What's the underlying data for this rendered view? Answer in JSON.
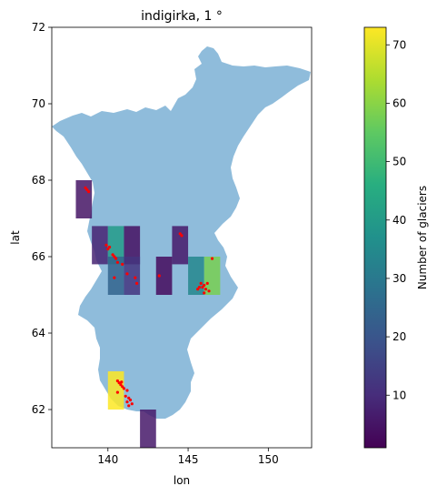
{
  "chart_data": {
    "type": "heatmap",
    "title": "indigirka, 1 °",
    "xlabel": "lon",
    "ylabel": "lat",
    "xlim": [
      136.5,
      152.7
    ],
    "ylim": [
      61.0,
      72.0
    ],
    "xticks": [
      140,
      145,
      150
    ],
    "yticks": [
      62,
      64,
      66,
      68,
      70,
      72
    ],
    "grid": false,
    "cell_size_deg": 1,
    "cells": [
      {
        "lon": 138,
        "lat": 67,
        "count": 5
      },
      {
        "lon": 139,
        "lat": 65.8,
        "count": 8
      },
      {
        "lon": 140,
        "lat": 65.8,
        "count": 40
      },
      {
        "lon": 141,
        "lat": 65.8,
        "count": 4
      },
      {
        "lon": 144,
        "lat": 65.8,
        "count": 6
      },
      {
        "lon": 140,
        "lat": 65,
        "count": 24
      },
      {
        "lon": 141,
        "lat": 65,
        "count": 12
      },
      {
        "lon": 143,
        "lat": 65,
        "count": 3
      },
      {
        "lon": 145,
        "lat": 65,
        "count": 34
      },
      {
        "lon": 146,
        "lat": 65,
        "count": 58
      },
      {
        "lon": 140,
        "lat": 62,
        "count": 73
      },
      {
        "lon": 142,
        "lat": 61,
        "count": 6
      }
    ],
    "glacier_points": [
      [
        138.7,
        67.75
      ],
      [
        138.8,
        67.7
      ],
      [
        138.6,
        67.8
      ],
      [
        139.9,
        66.3
      ],
      [
        140.1,
        66.25
      ],
      [
        140.0,
        66.2
      ],
      [
        140.3,
        66.05
      ],
      [
        140.5,
        65.95
      ],
      [
        140.4,
        66.0
      ],
      [
        140.6,
        65.85
      ],
      [
        140.9,
        65.8
      ],
      [
        141.2,
        65.55
      ],
      [
        141.7,
        65.45
      ],
      [
        141.8,
        65.3
      ],
      [
        140.4,
        65.45
      ],
      [
        143.2,
        65.5
      ],
      [
        144.5,
        66.6
      ],
      [
        144.6,
        66.55
      ],
      [
        145.8,
        65.3
      ],
      [
        145.9,
        65.2
      ],
      [
        146.0,
        65.25
      ],
      [
        146.1,
        65.15
      ],
      [
        146.2,
        65.3
      ],
      [
        146.3,
        65.1
      ],
      [
        145.7,
        65.2
      ],
      [
        146.0,
        65.05
      ],
      [
        145.6,
        65.15
      ],
      [
        146.5,
        65.95
      ],
      [
        140.6,
        62.75
      ],
      [
        140.7,
        62.7
      ],
      [
        140.8,
        62.65
      ],
      [
        140.9,
        62.6
      ],
      [
        141.0,
        62.55
      ],
      [
        141.2,
        62.5
      ],
      [
        141.1,
        62.35
      ],
      [
        141.3,
        62.3
      ],
      [
        141.4,
        62.25
      ],
      [
        141.2,
        62.2
      ],
      [
        141.3,
        62.1
      ],
      [
        141.5,
        62.15
      ],
      [
        140.6,
        62.45
      ],
      [
        140.85,
        62.72
      ]
    ],
    "colorbar": {
      "label": "Number of glaciers",
      "min": 1,
      "max": 73,
      "ticks": [
        10,
        20,
        30,
        40,
        50,
        60,
        70
      ],
      "colormap": "viridis"
    },
    "basin_color": "#8fbcdb",
    "glacier_color": "#ff0000"
  }
}
